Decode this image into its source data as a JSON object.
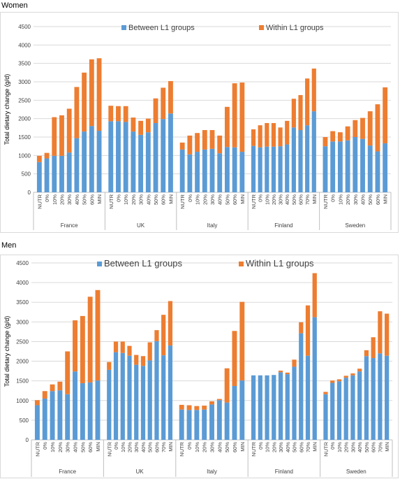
{
  "sections": {
    "women_title": "Women",
    "men_title": "Men"
  },
  "chart_data": [
    {
      "type": "bar",
      "stacked": true,
      "title": "Women",
      "ylabel": "Total dietary change (g/d)",
      "ylim": [
        0,
        4500
      ],
      "ytick_step": 500,
      "grid": true,
      "legend_position": "top",
      "series_names": [
        "Between L1 groups",
        "Within L1 groups"
      ],
      "colors": {
        "between": "#5B9BD5",
        "within": "#ED7D31",
        "grid": "#D9D9D9",
        "axis_text": "#404040"
      },
      "groups": [
        {
          "name": "France",
          "categories": [
            "NUTR",
            "0%",
            "10%",
            "20%",
            "30%",
            "40%",
            "50%",
            "60%",
            "MIN"
          ],
          "between": [
            820,
            920,
            990,
            990,
            1080,
            1470,
            1650,
            1800,
            1670
          ],
          "within": [
            170,
            150,
            1050,
            1100,
            1190,
            1390,
            1600,
            1810,
            1970
          ]
        },
        {
          "name": "UK",
          "categories": [
            "NUTR",
            "0%",
            "10%",
            "20%",
            "30%",
            "40%",
            "50%",
            "60%",
            "MIN"
          ],
          "between": [
            1930,
            1930,
            1910,
            1650,
            1560,
            1630,
            1880,
            1990,
            2140
          ],
          "within": [
            420,
            410,
            430,
            380,
            380,
            370,
            670,
            850,
            880
          ]
        },
        {
          "name": "Italy",
          "categories": [
            "NUTR",
            "0%",
            "10%",
            "20%",
            "30%",
            "40%",
            "50%",
            "60%",
            "MIN"
          ],
          "between": [
            1160,
            1030,
            1100,
            1160,
            1180,
            1060,
            1230,
            1220,
            1100
          ],
          "within": [
            190,
            510,
            510,
            530,
            510,
            480,
            1090,
            1740,
            1880
          ]
        },
        {
          "name": "Finland",
          "categories": [
            "NUTR",
            "0%",
            "10%",
            "20%",
            "30%",
            "40%",
            "50%",
            "60%",
            "70%",
            "MIN"
          ],
          "between": [
            1260,
            1220,
            1240,
            1240,
            1250,
            1300,
            1760,
            1690,
            1820,
            2200
          ],
          "within": [
            450,
            600,
            640,
            640,
            510,
            640,
            780,
            950,
            1270,
            1160
          ]
        },
        {
          "name": "Sweden",
          "categories": [
            "NUTR",
            "0%",
            "10%",
            "20%",
            "30%",
            "40%",
            "50%",
            "60%",
            "MIN"
          ],
          "between": [
            1250,
            1380,
            1380,
            1410,
            1500,
            1450,
            1270,
            1110,
            1330
          ],
          "within": [
            250,
            280,
            250,
            380,
            460,
            570,
            930,
            1280,
            1520
          ]
        }
      ]
    },
    {
      "type": "bar",
      "stacked": true,
      "title": "Men",
      "ylabel": "Total dietary change (g/d)",
      "ylim": [
        0,
        4500
      ],
      "ytick_step": 500,
      "grid": true,
      "legend_position": "top",
      "series_names": [
        "Between L1 groups",
        "Within L1 groups"
      ],
      "colors": {
        "between": "#5B9BD5",
        "within": "#ED7D31",
        "grid": "#D9D9D9",
        "axis_text": "#404040"
      },
      "groups": [
        {
          "name": "France",
          "categories": [
            "NUTR",
            "0%",
            "10%",
            "20%",
            "30%",
            "40%",
            "50%",
            "60%",
            "MIN"
          ],
          "between": [
            880,
            1050,
            1240,
            1260,
            1160,
            1740,
            1440,
            1460,
            1510
          ],
          "within": [
            130,
            190,
            170,
            220,
            1090,
            1300,
            1710,
            2180,
            2300
          ]
        },
        {
          "name": "UK",
          "categories": [
            "NUTR",
            "0%",
            "10%",
            "20%",
            "30%",
            "40%",
            "50%",
            "60%",
            "70%",
            "MIN"
          ],
          "between": [
            1780,
            2230,
            2210,
            2140,
            1910,
            1880,
            2020,
            2510,
            2150,
            2400
          ],
          "within": [
            200,
            270,
            290,
            250,
            250,
            250,
            460,
            280,
            1030,
            1130
          ]
        },
        {
          "name": "Italy",
          "categories": [
            "NUTR",
            "0%",
            "10%",
            "20%",
            "30%",
            "40%",
            "50%",
            "60%",
            "MIN"
          ],
          "between": [
            770,
            760,
            760,
            770,
            900,
            1010,
            950,
            1370,
            1510
          ],
          "within": [
            120,
            120,
            100,
            100,
            80,
            30,
            870,
            1400,
            2000
          ]
        },
        {
          "name": "Finland",
          "categories": [
            "NUTR",
            "0%",
            "10%",
            "20%",
            "30%",
            "40%",
            "50%",
            "60%",
            "70%",
            "MIN"
          ],
          "between": [
            1640,
            1640,
            1640,
            1650,
            1720,
            1670,
            1860,
            2710,
            2140,
            3120
          ],
          "within": [
            0,
            0,
            0,
            0,
            40,
            40,
            180,
            280,
            1280,
            1120
          ]
        },
        {
          "name": "Sweden",
          "categories": [
            "NUTR",
            "0%",
            "10%",
            "20%",
            "30%",
            "40%",
            "50%",
            "60%",
            "70%",
            "MIN"
          ],
          "between": [
            1160,
            1450,
            1490,
            1580,
            1640,
            1740,
            2130,
            2080,
            2200,
            2140
          ],
          "within": [
            60,
            60,
            50,
            50,
            50,
            70,
            150,
            530,
            1070,
            1070
          ]
        }
      ]
    }
  ]
}
